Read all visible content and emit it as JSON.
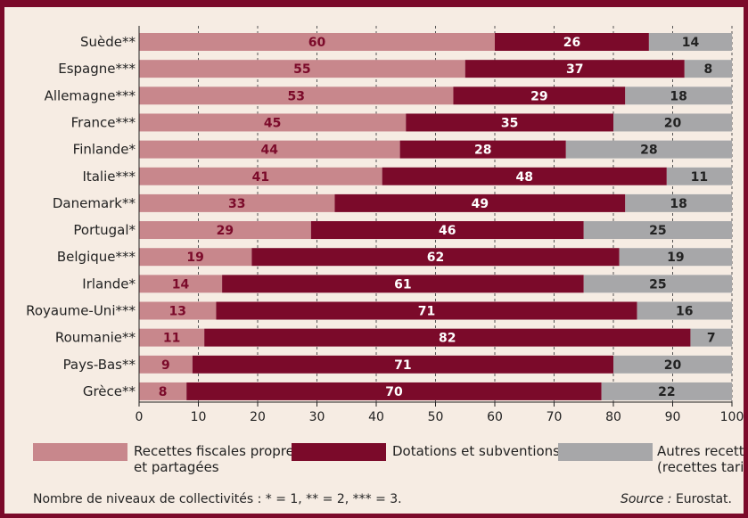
{
  "chart_data": {
    "type": "bar",
    "orientation": "horizontal",
    "stacked": true,
    "title": "",
    "xlabel": "",
    "ylabel": "",
    "xlim": [
      0,
      100
    ],
    "x_ticks": [
      0,
      10,
      20,
      30,
      40,
      50,
      60,
      70,
      80,
      90,
      100
    ],
    "grid": "vertical dashed",
    "categories": [
      "Suède**",
      "Espagne***",
      "Allemagne***",
      "France***",
      "Finlande*",
      "Italie***",
      "Danemark**",
      "Portugal*",
      "Belgique***",
      "Irlande*",
      "Royaume-Uni***",
      "Roumanie**",
      "Pays-Bas**",
      "Grèce**"
    ],
    "series": [
      {
        "name": "Recettes fiscales propres et partagées",
        "color": "#c8878c",
        "label_color": "#7b0a2a",
        "values": [
          60,
          55,
          53,
          45,
          44,
          41,
          33,
          29,
          19,
          14,
          13,
          11,
          9,
          8
        ]
      },
      {
        "name": "Dotations et subventions",
        "color": "#7b0a2a",
        "label_color": "#ffffff",
        "values": [
          26,
          37,
          29,
          35,
          28,
          48,
          49,
          46,
          62,
          61,
          71,
          82,
          71,
          70
        ]
      },
      {
        "name": "Autres recettes (recettes tarifaires...)",
        "color": "#a7a7a9",
        "label_color": "#222222",
        "values": [
          14,
          8,
          18,
          20,
          28,
          11,
          18,
          25,
          19,
          25,
          16,
          7,
          20,
          22
        ]
      }
    ]
  },
  "legend": [
    {
      "line1": "Recettes fiscales propres",
      "line2": "et partagées",
      "color": "#c8878c"
    },
    {
      "line1": "Dotations et subventions",
      "line2": "",
      "color": "#7b0a2a"
    },
    {
      "line1": "Autres recettes",
      "line2": "(recettes tarifaires...)",
      "color": "#a7a7a9"
    }
  ],
  "footnote": {
    "levels": "Nombre de niveaux de collectivités : * = 1, ** = 2, *** = 3.",
    "source_label": "Source :",
    "source_value": " Eurostat."
  },
  "colors": {
    "frame": "#7b0a2a",
    "background": "#f6ece3",
    "bar_background": "#ffffff"
  }
}
